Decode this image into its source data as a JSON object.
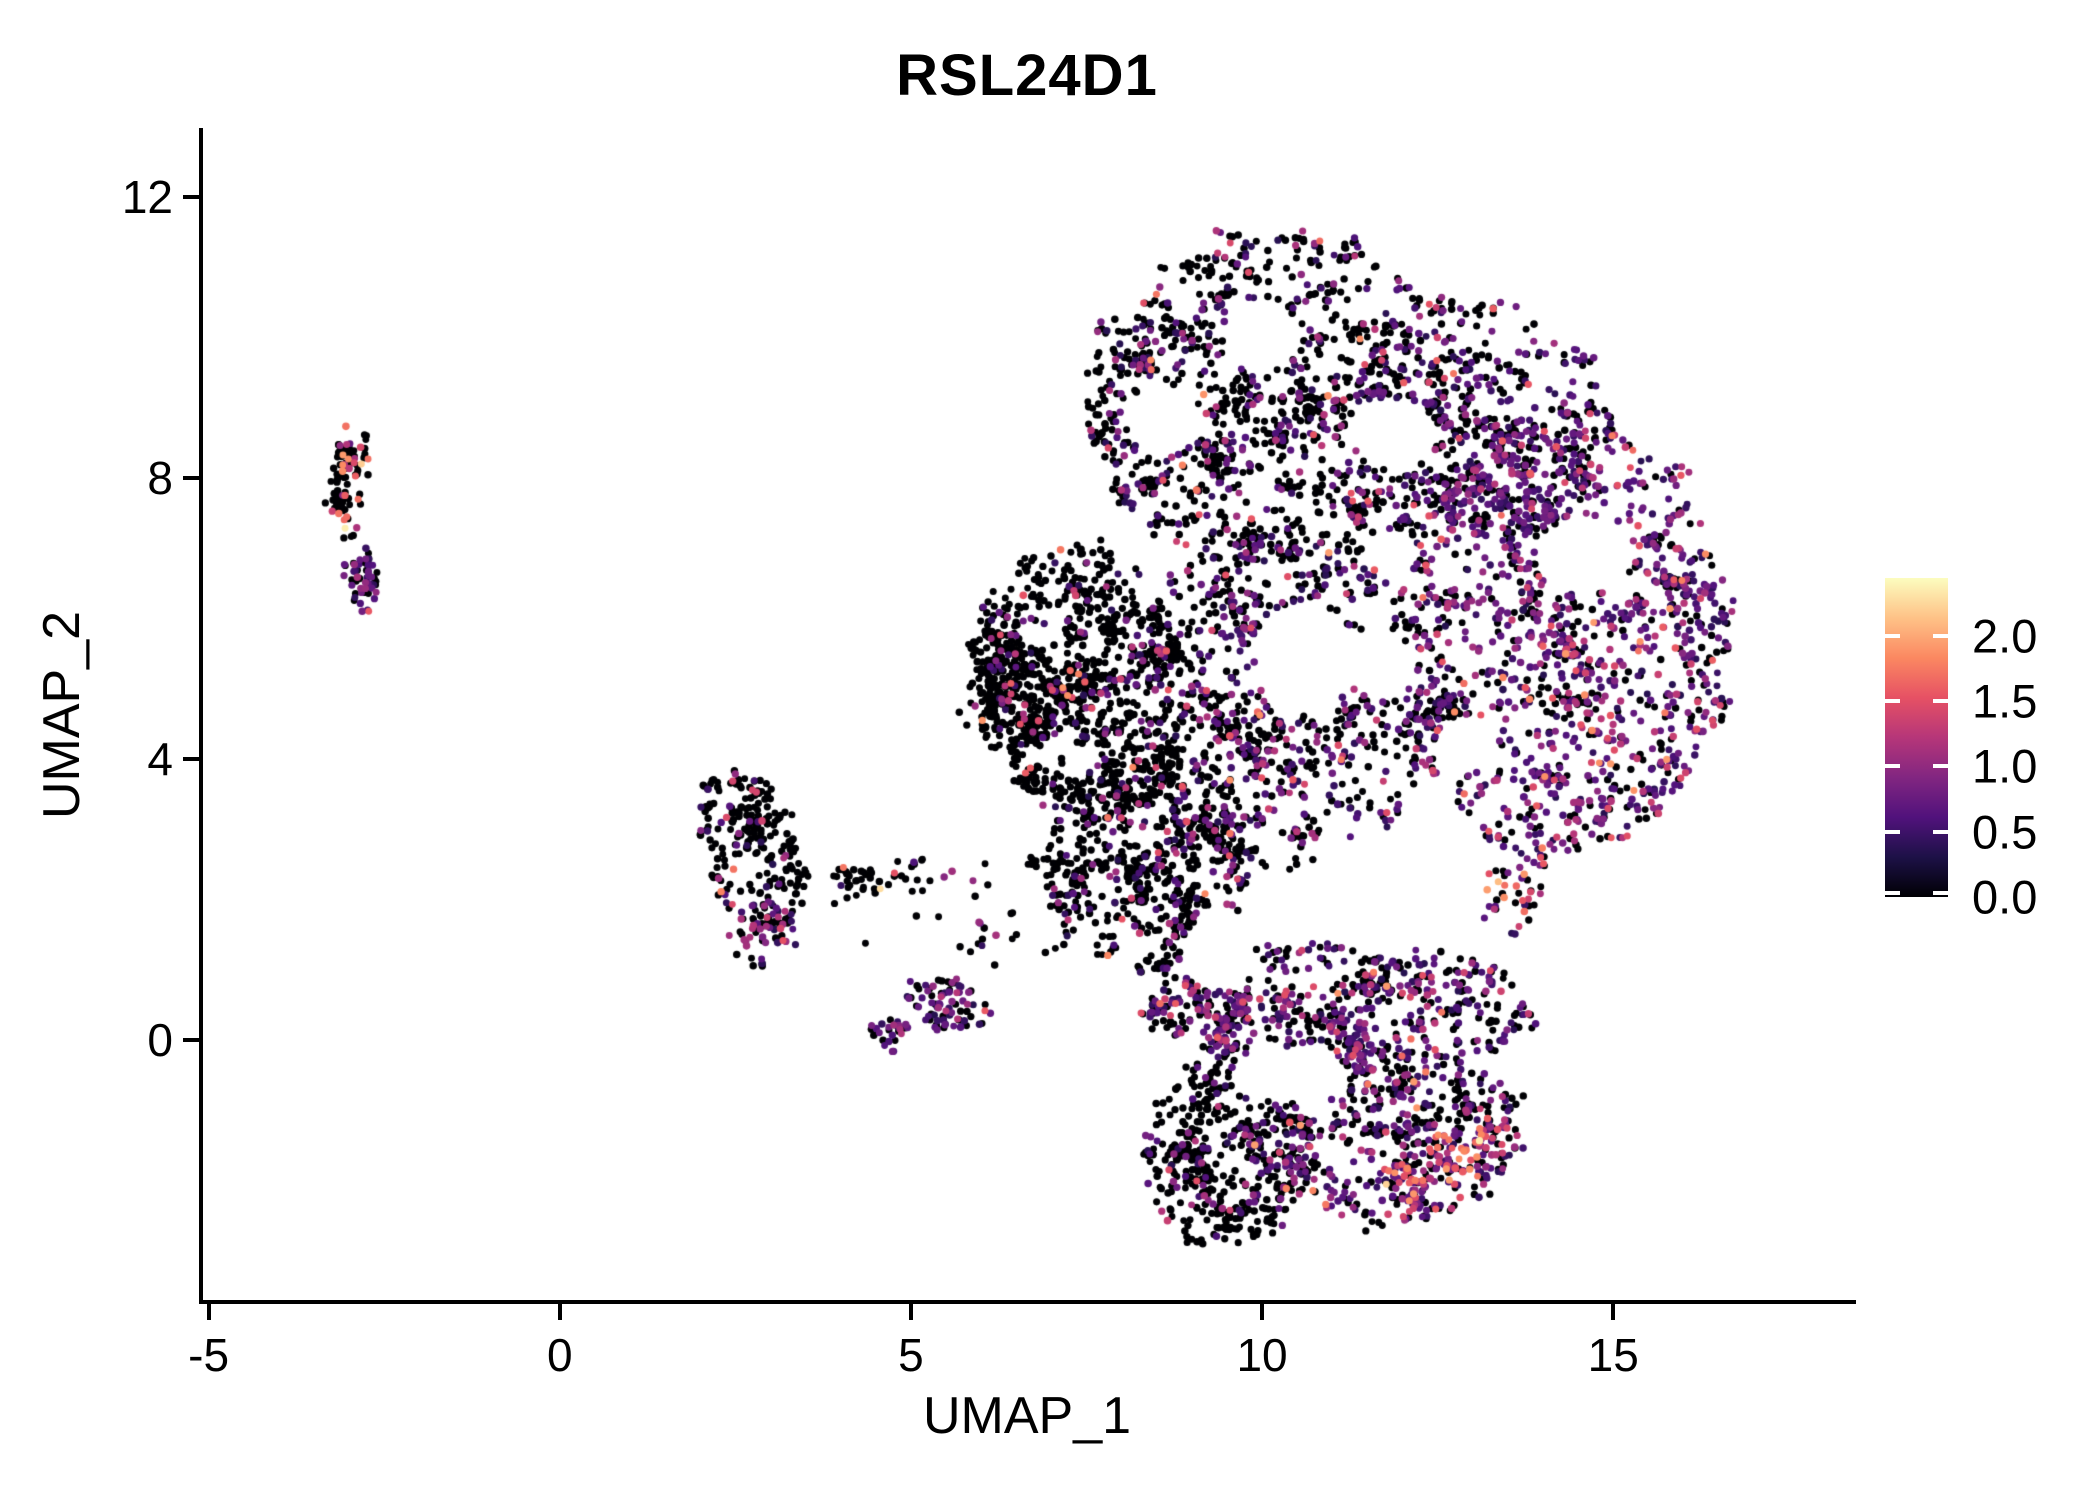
{
  "title": "RSL24D1",
  "axes": {
    "x": {
      "label": "UMAP_1",
      "ticks": [
        -5,
        0,
        5,
        10,
        15
      ],
      "range": [
        -5.08,
        18.4
      ]
    },
    "y": {
      "label": "UMAP_2",
      "ticks": [
        0,
        4,
        8,
        12
      ],
      "range": [
        -3.7,
        12.95
      ]
    }
  },
  "colorbar": {
    "tick_labels": [
      "2.0",
      "1.5",
      "1.0",
      "0.5",
      "0.0"
    ],
    "tick_values": [
      2.0,
      1.5,
      1.0,
      0.5,
      0.0
    ],
    "vmin": 0,
    "vmax": 2.44,
    "colormap": "magma",
    "stops": [
      "#000004",
      "#1D1147",
      "#51127C",
      "#822681",
      "#B63679",
      "#E65164",
      "#FB8861",
      "#FEC287",
      "#FCFDBF"
    ]
  },
  "chart_data": {
    "type": "scatter",
    "title": "RSL24D1",
    "xlabel": "UMAP_1",
    "ylabel": "UMAP_2",
    "xlim": [
      -5.08,
      18.4
    ],
    "ylim": [
      -3.7,
      12.95
    ],
    "legend_position": "right",
    "grid": false,
    "n_points_approx": 7700,
    "expression_range": [
      0,
      2.44
    ],
    "point_radius_px": 3.4,
    "seed": 1337,
    "color_bins": {
      "zero": [
        0,
        0
      ],
      "low": [
        0.35,
        0.85
      ],
      "mid": [
        0.9,
        1.25
      ],
      "high": [
        1.3,
        1.6
      ],
      "vhigh": [
        1.65,
        1.95
      ],
      "top": [
        2.05,
        2.44
      ]
    },
    "clusters": [
      {
        "name": "left-streak-top",
        "cx": -3.0,
        "cy": 7.95,
        "rx": 0.28,
        "ry": 0.9,
        "rot": -6,
        "n": 95,
        "mix": {
          "zero": 0.72,
          "low": 0.07,
          "mid": 0.06,
          "high": 0.06,
          "vhigh": 0.07,
          "top": 0.02
        }
      },
      {
        "name": "left-streak-bottom",
        "cx": -2.78,
        "cy": 6.55,
        "rx": 0.2,
        "ry": 0.48,
        "rot": 0,
        "n": 60,
        "mix": {
          "zero": 0.45,
          "low": 0.44,
          "mid": 0.09,
          "high": 0.02
        }
      },
      {
        "name": "mid-left-blob",
        "cx": 2.75,
        "cy": 2.65,
        "rx": 0.7,
        "ry": 1.2,
        "rot": 22,
        "n": 230,
        "mix": {
          "zero": 0.84,
          "low": 0.06,
          "mid": 0.04,
          "high": 0.03,
          "vhigh": 0.03
        }
      },
      {
        "name": "mid-left-edge",
        "cx": 2.9,
        "cy": 1.5,
        "rx": 0.5,
        "ry": 0.45,
        "rot": 20,
        "n": 55,
        "mix": {
          "zero": 0.42,
          "low": 0.38,
          "mid": 0.18,
          "high": 0.02
        }
      },
      {
        "name": "mid-chain",
        "cx": 4.45,
        "cy": 2.3,
        "rx": 0.85,
        "ry": 0.18,
        "rot": -10,
        "n": 42,
        "mix": {
          "zero": 0.88,
          "low": 0.02,
          "high": 0.04,
          "vhigh": 0.04,
          "top": 0.02
        }
      },
      {
        "name": "small-cluster",
        "cx": 5.55,
        "cy": 0.5,
        "rx": 0.62,
        "ry": 0.34,
        "rot": -14,
        "n": 75,
        "mix": {
          "zero": 0.4,
          "low": 0.45,
          "mid": 0.13,
          "high": 0.02
        }
      },
      {
        "name": "small-cluster-tail",
        "cx": 4.65,
        "cy": 0.08,
        "rx": 0.3,
        "ry": 0.26,
        "rot": 0,
        "n": 30,
        "mix": {
          "zero": 0.55,
          "low": 0.33,
          "mid": 0.12
        }
      },
      {
        "name": "sparse-between",
        "cx": 5.6,
        "cy": 1.7,
        "rx": 1.6,
        "ry": 1.1,
        "rot": 0,
        "n": 35,
        "mix": {
          "zero": 0.78,
          "low": 0.14,
          "mid": 0.08
        }
      },
      {
        "name": "main-left-wing",
        "cx": 7.45,
        "cy": 5.1,
        "rx": 1.55,
        "ry": 2.0,
        "rot": 14,
        "n": 850,
        "mix": {
          "zero": 0.87,
          "low": 0.06,
          "mid": 0.04,
          "high": 0.02,
          "vhigh": 0.01
        }
      },
      {
        "name": "left-dense-spur",
        "cx": 6.5,
        "cy": 4.9,
        "rx": 0.7,
        "ry": 0.75,
        "rot": 0,
        "n": 220,
        "mix": {
          "zero": 0.93,
          "low": 0.04,
          "mid": 0.02,
          "high": 0.01
        }
      },
      {
        "name": "main-top-dome",
        "cx": 10.2,
        "cy": 9.1,
        "rx": 2.75,
        "ry": 2.35,
        "rot": 0,
        "n": 1050,
        "mix": {
          "zero": 0.7,
          "low": 0.2,
          "mid": 0.06,
          "high": 0.03,
          "vhigh": 0.01
        }
      },
      {
        "name": "main-right-top",
        "cx": 13.1,
        "cy": 8.8,
        "rx": 1.9,
        "ry": 1.8,
        "rot": -30,
        "n": 480,
        "mix": {
          "zero": 0.49,
          "low": 0.38,
          "mid": 0.09,
          "high": 0.03,
          "vhigh": 0.01
        }
      },
      {
        "name": "main-center",
        "cx": 10.3,
        "cy": 4.9,
        "rx": 2.3,
        "ry": 2.4,
        "rot": 0,
        "n": 850,
        "mix": {
          "zero": 0.62,
          "low": 0.26,
          "mid": 0.08,
          "high": 0.03,
          "vhigh": 0.01
        }
      },
      {
        "name": "main-right-lobe",
        "cx": 14.3,
        "cy": 5.7,
        "rx": 2.35,
        "ry": 3.1,
        "rot": 0,
        "n": 1250,
        "mix": {
          "zero": 0.33,
          "low": 0.45,
          "mid": 0.14,
          "high": 0.06,
          "vhigh": 0.02
        }
      },
      {
        "name": "right-edge-hotspot",
        "cx": 13.6,
        "cy": 2.4,
        "rx": 0.45,
        "ry": 0.95,
        "rot": 0,
        "n": 55,
        "mix": {
          "zero": 0.25,
          "low": 0.3,
          "mid": 0.12,
          "high": 0.13,
          "vhigh": 0.15,
          "top": 0.05
        }
      },
      {
        "name": "main-lower-left",
        "cx": 8.35,
        "cy": 2.6,
        "rx": 1.5,
        "ry": 1.65,
        "rot": 0,
        "n": 600,
        "mix": {
          "zero": 0.81,
          "low": 0.12,
          "mid": 0.04,
          "high": 0.02,
          "vhigh": 0.01
        }
      },
      {
        "name": "bottom-band",
        "cx": 11.2,
        "cy": 0.45,
        "rx": 2.8,
        "ry": 0.95,
        "rot": 0,
        "n": 650,
        "mix": {
          "zero": 0.45,
          "low": 0.4,
          "mid": 0.1,
          "high": 0.04,
          "vhigh": 0.01
        }
      },
      {
        "name": "bottom-lobe-left",
        "cx": 9.45,
        "cy": -1.6,
        "rx": 1.15,
        "ry": 1.35,
        "rot": 0,
        "n": 430,
        "mix": {
          "zero": 0.82,
          "low": 0.13,
          "mid": 0.04,
          "high": 0.01
        }
      },
      {
        "name": "bottom-lobe-right",
        "cx": 11.8,
        "cy": -1.35,
        "rx": 1.95,
        "ry": 1.3,
        "rot": 0,
        "n": 480,
        "mix": {
          "zero": 0.5,
          "low": 0.37,
          "mid": 0.09,
          "high": 0.03,
          "vhigh": 0.01
        }
      },
      {
        "name": "bottom-arc-hot",
        "cx": 12.55,
        "cy": -1.85,
        "rx": 1.15,
        "ry": 0.5,
        "rot": 28,
        "n": 140,
        "mix": {
          "zero": 0.22,
          "low": 0.28,
          "mid": 0.16,
          "high": 0.16,
          "vhigh": 0.16,
          "top": 0.02
        }
      }
    ],
    "gaps": [
      {
        "cx": 10.6,
        "cy": 5.45,
        "rx": 0.7,
        "ry": 0.8
      },
      {
        "cx": 11.75,
        "cy": 2.1,
        "rx": 1.0,
        "ry": 0.9
      },
      {
        "cx": 9.4,
        "cy": 1.3,
        "rx": 0.5,
        "ry": 0.55
      },
      {
        "cx": 14.6,
        "cy": 6.9,
        "rx": 0.65,
        "ry": 0.55
      },
      {
        "cx": 10.4,
        "cy": -0.5,
        "rx": 0.85,
        "ry": 0.4
      },
      {
        "cx": 11.7,
        "cy": 5.3,
        "rx": 0.5,
        "ry": 0.45
      },
      {
        "cx": 12.9,
        "cy": 4.2,
        "rx": 0.45,
        "ry": 0.4
      },
      {
        "cx": 10.0,
        "cy": 10.0,
        "rx": 0.55,
        "ry": 0.5
      },
      {
        "cx": 11.9,
        "cy": 8.6,
        "rx": 0.6,
        "ry": 0.5
      },
      {
        "cx": 8.6,
        "cy": 8.9,
        "rx": 0.45,
        "ry": 0.45
      }
    ]
  }
}
